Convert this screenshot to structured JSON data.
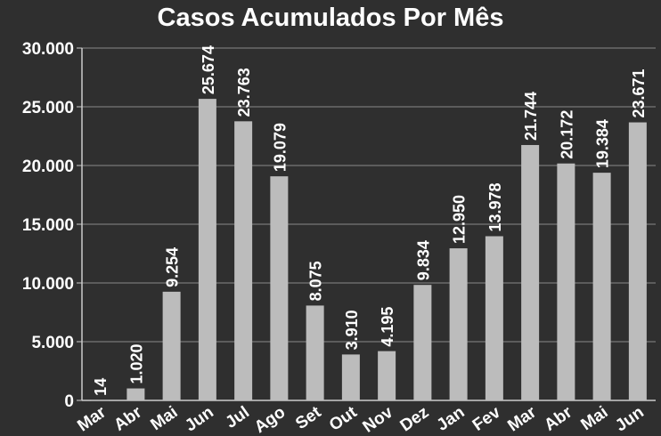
{
  "chart_data": {
    "type": "bar",
    "title": "Casos Acumulados Por Mês",
    "xlabel": "",
    "ylabel": "",
    "categories": [
      "Mar",
      "Abr",
      "Mai",
      "Jun",
      "Jul",
      "Ago",
      "Set",
      "Out",
      "Nov",
      "Dez",
      "Jan",
      "Fev",
      "Mar",
      "Abr",
      "Mai",
      "Jun"
    ],
    "values": [
      14,
      1020,
      9254,
      25674,
      23763,
      19079,
      8075,
      3910,
      4195,
      9834,
      12950,
      13978,
      21744,
      20172,
      19384,
      23671
    ],
    "value_labels": [
      "14",
      "1.020",
      "9.254",
      "25.674",
      "23.763",
      "19.079",
      "8.075",
      "3.910",
      "4.195",
      "9.834",
      "12.950",
      "13.978",
      "21.744",
      "20.172",
      "19.384",
      "23.671"
    ],
    "ylim": [
      0,
      30000
    ],
    "y_ticks": [
      0,
      5000,
      10000,
      15000,
      20000,
      25000,
      30000
    ],
    "y_tick_labels": [
      "0",
      "5.000",
      "10.000",
      "15.000",
      "20.000",
      "25.000",
      "30.000"
    ],
    "grid": true,
    "legend": "none",
    "colors": {
      "background": "#2f2f2f",
      "bar": "#bcbcbc",
      "grid": "#8a8a8a",
      "axis": "#cccccc",
      "text": "#ffffff"
    }
  }
}
